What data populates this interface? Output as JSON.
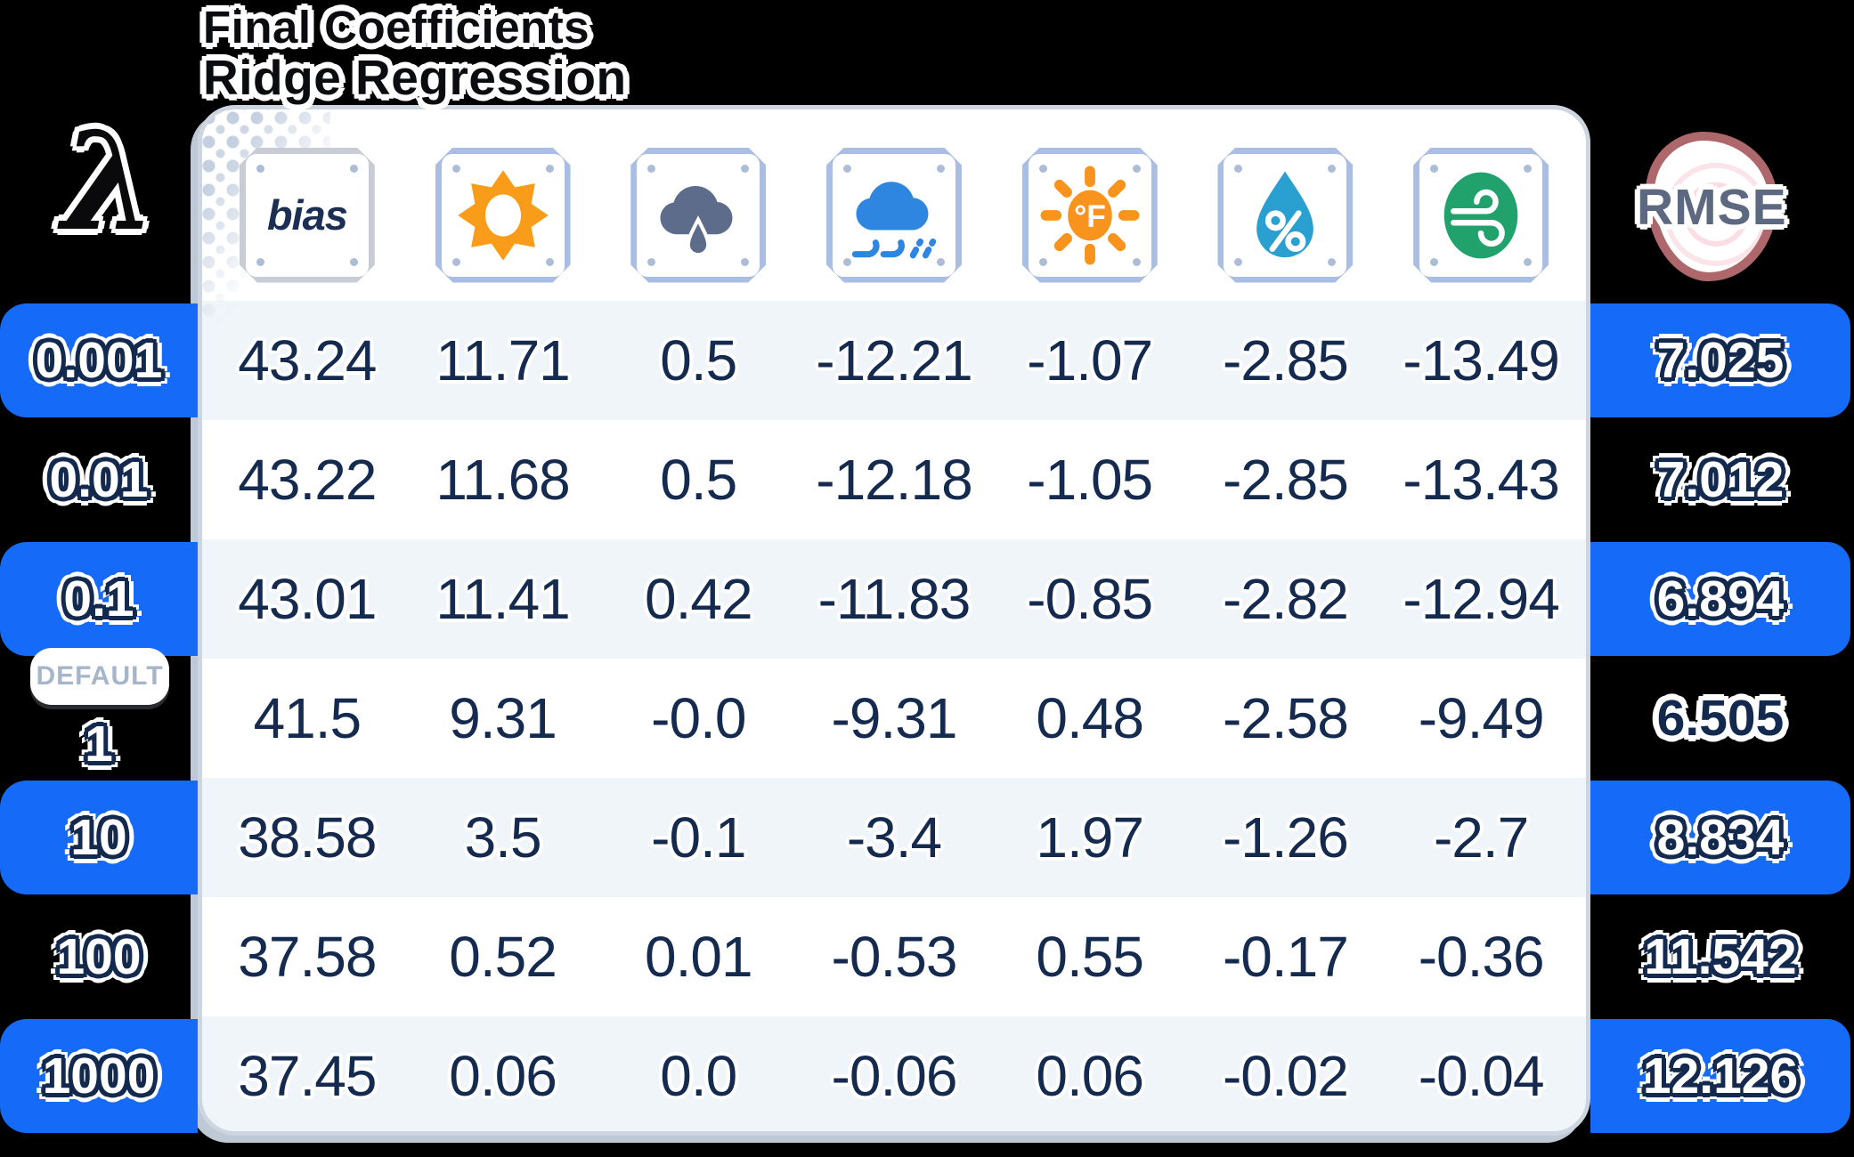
{
  "title": {
    "line1": "Final Coefficients",
    "line2": "Ridge Regression"
  },
  "lambda_symbol": "λ",
  "rmse_label": "RMSE",
  "default_badge_label": "DEFAULT",
  "columns": [
    {
      "id": "bias",
      "label": "bias"
    },
    {
      "id": "sun",
      "icon": "sun-icon"
    },
    {
      "id": "rain",
      "icon": "rain-cloud-icon"
    },
    {
      "id": "sleet",
      "icon": "wind-blown-rain-cloud-icon"
    },
    {
      "id": "temperature_f",
      "icon": "temperature-sun-icon"
    },
    {
      "id": "humidity_pct",
      "icon": "humidity-drop-icon"
    },
    {
      "id": "wind",
      "icon": "wind-swirl-icon"
    }
  ],
  "rows": [
    {
      "lambda": "0.001",
      "band": true,
      "default": false,
      "best": false,
      "values": [
        "43.24",
        "11.71",
        "0.5",
        "-12.21",
        "-1.07",
        "-2.85",
        "-13.49"
      ],
      "rmse": "7.025"
    },
    {
      "lambda": "0.01",
      "band": false,
      "default": false,
      "best": false,
      "values": [
        "43.22",
        "11.68",
        "0.5",
        "-12.18",
        "-1.05",
        "-2.85",
        "-13.43"
      ],
      "rmse": "7.012"
    },
    {
      "lambda": "0.1",
      "band": true,
      "default": false,
      "best": false,
      "values": [
        "43.01",
        "11.41",
        "0.42",
        "-11.83",
        "-0.85",
        "-2.82",
        "-12.94"
      ],
      "rmse": "6.894"
    },
    {
      "lambda": "1",
      "band": false,
      "default": true,
      "best": true,
      "values": [
        "41.5",
        "9.31",
        "-0.0",
        "-9.31",
        "0.48",
        "-2.58",
        "-9.49"
      ],
      "rmse": "6.505"
    },
    {
      "lambda": "10",
      "band": true,
      "default": false,
      "best": false,
      "values": [
        "38.58",
        "3.5",
        "-0.1",
        "-3.4",
        "1.97",
        "-1.26",
        "-2.7"
      ],
      "rmse": "8.834"
    },
    {
      "lambda": "100",
      "band": false,
      "default": false,
      "best": false,
      "values": [
        "37.58",
        "0.52",
        "0.01",
        "-0.53",
        "0.55",
        "-0.17",
        "-0.36"
      ],
      "rmse": "11.542"
    },
    {
      "lambda": "1000",
      "band": true,
      "default": false,
      "best": false,
      "values": [
        "37.45",
        "0.06",
        "0.0",
        "-0.06",
        "0.06",
        "-0.02",
        "-0.04"
      ],
      "rmse": "12.126"
    }
  ],
  "colors": {
    "accent_blue": "#156bf7",
    "navy_text": "#142a4e",
    "row_alt": "#f0f5fa",
    "card_border": "#cdd5e1",
    "plate_border_blue": "#a9bee2",
    "plate_border_gray": "#c8cdd5",
    "sun_orange": "#f99c1a",
    "temp_orange": "#f8941e",
    "rain_slate": "#5e6c8c",
    "sleet_blue": "#2e86e0",
    "humidity_teal": "#2aa0d1",
    "wind_green": "#21a16b",
    "rmse_border": "#ae686c",
    "rmse_text": "#5d6980",
    "default_text": "#a5b5ca"
  },
  "chart_data": {
    "type": "table",
    "title": "Final Coefficients — Ridge Regression",
    "row_header": "lambda",
    "columns": [
      "bias",
      "sun",
      "rain",
      "sleet",
      "temperature_f",
      "humidity_pct",
      "wind",
      "RMSE"
    ],
    "rows": [
      {
        "lambda": 0.001,
        "bias": 43.24,
        "sun": 11.71,
        "rain": 0.5,
        "sleet": -12.21,
        "temperature_f": -1.07,
        "humidity_pct": -2.85,
        "wind": -13.49,
        "rmse": 7.025
      },
      {
        "lambda": 0.01,
        "bias": 43.22,
        "sun": 11.68,
        "rain": 0.5,
        "sleet": -12.18,
        "temperature_f": -1.05,
        "humidity_pct": -2.85,
        "wind": -13.43,
        "rmse": 7.012
      },
      {
        "lambda": 0.1,
        "bias": 43.01,
        "sun": 11.41,
        "rain": 0.42,
        "sleet": -11.83,
        "temperature_f": -0.85,
        "humidity_pct": -2.82,
        "wind": -12.94,
        "rmse": 6.894
      },
      {
        "lambda": 1,
        "bias": 41.5,
        "sun": 9.31,
        "rain": -0.0,
        "sleet": -9.31,
        "temperature_f": 0.48,
        "humidity_pct": -2.58,
        "wind": -9.49,
        "rmse": 6.505
      },
      {
        "lambda": 10,
        "bias": 38.58,
        "sun": 3.5,
        "rain": -0.1,
        "sleet": -3.4,
        "temperature_f": 1.97,
        "humidity_pct": -1.26,
        "wind": -2.7,
        "rmse": 8.834
      },
      {
        "lambda": 100,
        "bias": 37.58,
        "sun": 0.52,
        "rain": 0.01,
        "sleet": -0.53,
        "temperature_f": 0.55,
        "humidity_pct": -0.17,
        "wind": -0.36,
        "rmse": 11.542
      },
      {
        "lambda": 1000,
        "bias": 37.45,
        "sun": 0.06,
        "rain": 0.0,
        "sleet": -0.06,
        "temperature_f": 0.06,
        "humidity_pct": -0.02,
        "wind": -0.04,
        "rmse": 12.126
      }
    ],
    "notes": "lambda=1 is marked DEFAULT; RMSE 6.505 is the best (lowest) value"
  }
}
